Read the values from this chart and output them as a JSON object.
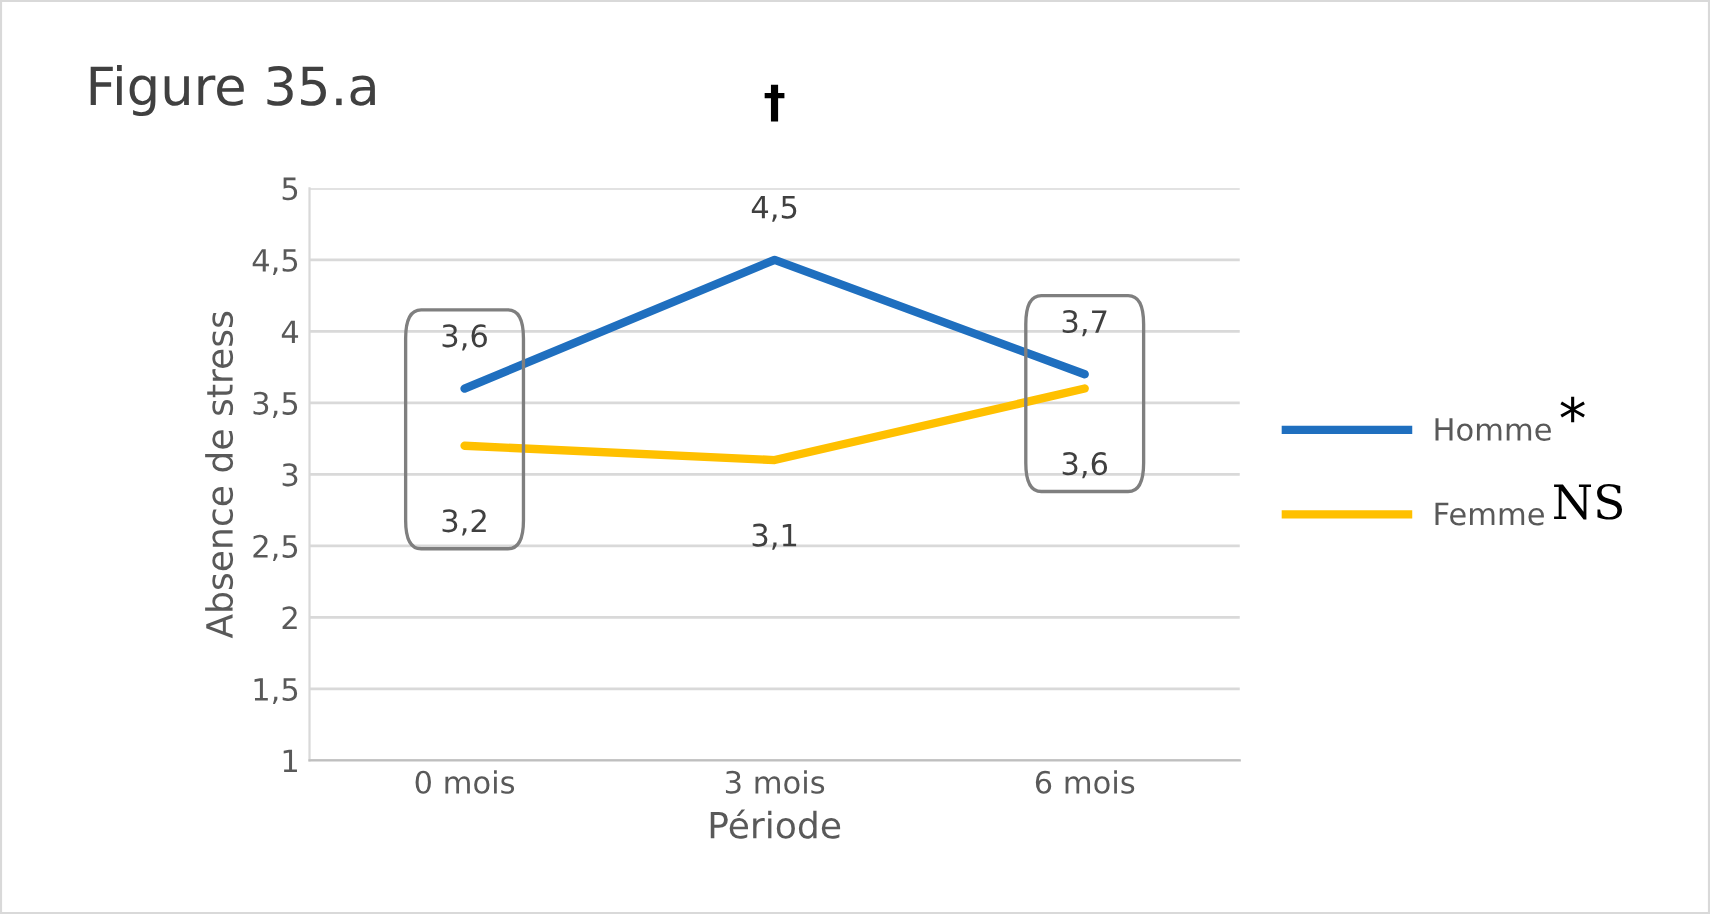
{
  "chart_data": {
    "type": "line",
    "title": "Figure 35.a",
    "xlabel": "Période",
    "ylabel": "Absence de stress",
    "categories": [
      "0 mois",
      "3 mois",
      "6 mois"
    ],
    "series": [
      {
        "name": "Homme",
        "color": "#1f6fbf",
        "values": [
          3.6,
          4.5,
          3.7
        ],
        "value_labels": [
          "3,6",
          "4,5",
          "3,7"
        ]
      },
      {
        "name": "Femme",
        "color": "#ffc000",
        "values": [
          3.2,
          3.1,
          3.6
        ],
        "value_labels": [
          "3,2",
          "3,1",
          "3,6"
        ]
      }
    ],
    "ylim": [
      1,
      5
    ],
    "yticks": [
      1,
      {
        "value": 1.5,
        "label": "1,5"
      },
      2,
      {
        "value": 2.5,
        "label": "2,5"
      },
      3,
      {
        "value": 3.5,
        "label": "3,5"
      },
      4,
      {
        "value": 4.5,
        "label": "4,5"
      },
      5
    ],
    "grid": "y",
    "legend": "right",
    "marker": "none",
    "line_style": "solid",
    "annotations": [
      "†",
      "*",
      "NS"
    ]
  }
}
